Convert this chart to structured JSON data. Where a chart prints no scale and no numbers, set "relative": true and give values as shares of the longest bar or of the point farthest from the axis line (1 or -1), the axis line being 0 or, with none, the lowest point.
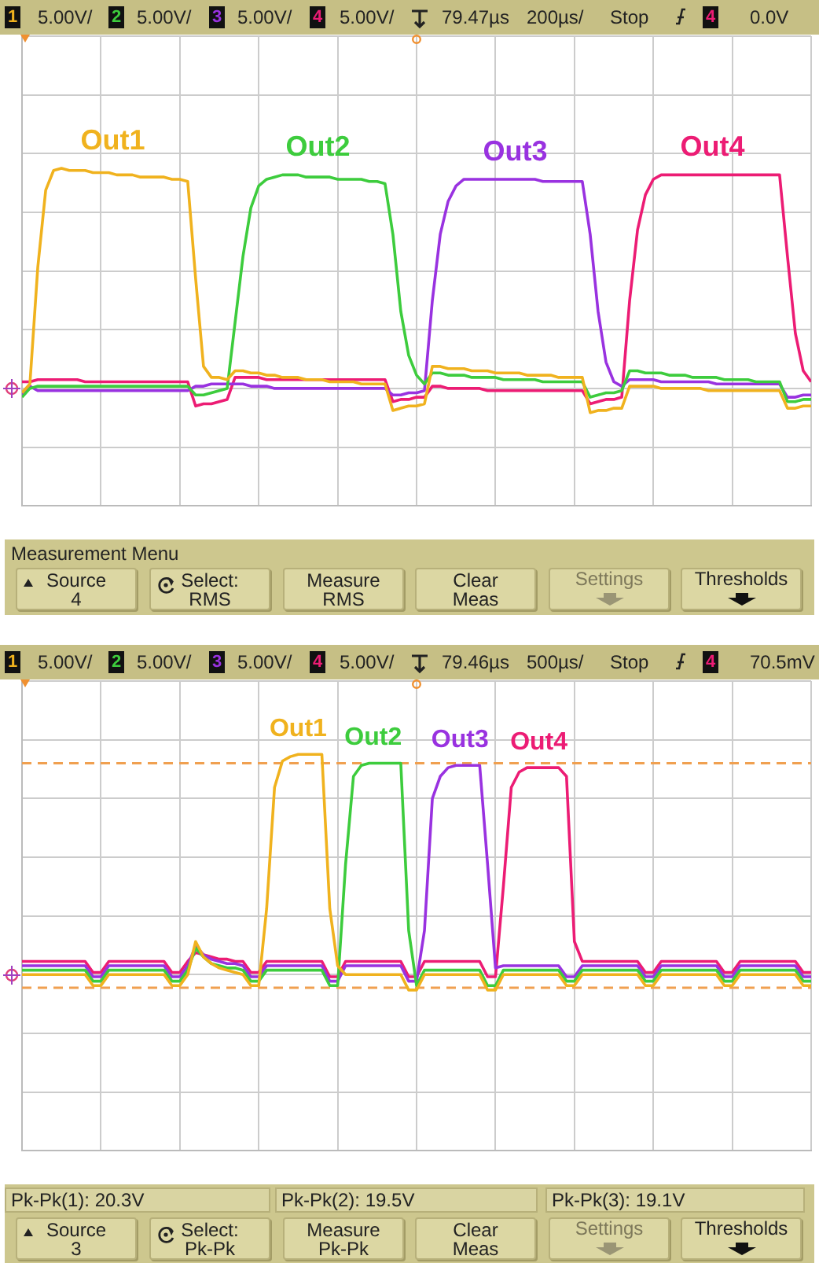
{
  "chart_data": [
    {
      "type": "line",
      "relative": true,
      "grid": true,
      "categories": [
        null,
        null,
        null,
        null,
        null,
        null,
        null,
        null,
        null,
        null,
        null,
        null,
        null,
        null,
        null,
        null,
        null,
        null,
        null,
        null,
        null,
        null,
        null,
        null,
        null,
        null,
        null,
        null,
        null,
        null,
        null,
        null,
        null,
        null,
        null,
        null,
        null,
        null,
        null,
        null,
        null,
        null,
        null,
        null,
        null,
        null,
        null,
        null,
        null,
        null,
        null,
        null,
        null,
        null,
        null,
        null,
        null,
        null,
        null,
        null,
        null,
        null,
        null,
        null,
        null,
        null,
        null,
        null,
        null,
        null,
        null,
        null,
        null,
        null,
        null,
        null,
        null,
        null,
        null,
        null,
        null,
        null,
        null,
        null,
        null,
        null,
        null,
        null,
        null,
        null,
        null,
        null,
        null,
        null,
        null,
        null,
        null,
        null,
        null,
        null,
        null
      ],
      "series": [
        {
          "name": "Out1",
          "color": "#f0b21e",
          "values": [
            -0.02,
            0.02,
            0.55,
            0.9,
            0.99,
            1.0,
            0.99,
            0.99,
            0.99,
            0.98,
            0.98,
            0.98,
            0.97,
            0.97,
            0.97,
            0.96,
            0.96,
            0.96,
            0.96,
            0.95,
            0.95,
            0.94,
            0.5,
            0.1,
            0.05,
            0.05,
            0.04,
            0.08,
            0.08,
            0.07,
            0.07,
            0.06,
            0.06,
            0.05,
            0.05,
            0.05,
            0.04,
            0.04,
            0.04,
            0.03,
            0.03,
            0.03,
            0.03,
            0.02,
            0.02,
            0.02,
            0.02,
            -0.1,
            -0.09,
            -0.08,
            -0.08,
            -0.07,
            0.1,
            0.1,
            0.09,
            0.09,
            0.09,
            0.08,
            0.08,
            0.08,
            0.07,
            0.07,
            0.07,
            0.07,
            0.06,
            0.06,
            0.06,
            0.06,
            0.05,
            0.05,
            0.05,
            0.05,
            -0.11,
            -0.1,
            -0.1,
            -0.09,
            -0.09,
            0.01,
            0.01,
            0.01,
            0.01,
            0.0,
            0.0,
            0.0,
            0.0,
            0.0,
            0.0,
            -0.01,
            -0.01,
            -0.01,
            -0.01,
            -0.01,
            -0.01,
            -0.01,
            -0.01,
            -0.01,
            -0.01,
            -0.09,
            -0.09,
            -0.08,
            -0.08
          ]
        },
        {
          "name": "Out2",
          "color": "#3dcc3d",
          "values": [
            -0.04,
            0.0,
            0.01,
            0.01,
            0.01,
            0.01,
            0.01,
            0.01,
            0.01,
            0.01,
            0.01,
            0.01,
            0.01,
            0.01,
            0.01,
            0.01,
            0.01,
            0.01,
            0.01,
            0.01,
            0.01,
            0.01,
            -0.03,
            -0.03,
            -0.02,
            -0.01,
            0.0,
            0.3,
            0.6,
            0.82,
            0.92,
            0.95,
            0.96,
            0.97,
            0.97,
            0.97,
            0.96,
            0.96,
            0.96,
            0.96,
            0.95,
            0.95,
            0.95,
            0.95,
            0.94,
            0.94,
            0.93,
            0.7,
            0.35,
            0.15,
            0.06,
            0.02,
            0.07,
            0.07,
            0.06,
            0.06,
            0.06,
            0.05,
            0.05,
            0.05,
            0.05,
            0.04,
            0.04,
            0.04,
            0.04,
            0.04,
            0.03,
            0.03,
            0.03,
            0.03,
            0.03,
            0.03,
            -0.04,
            -0.03,
            -0.02,
            -0.02,
            -0.01,
            0.08,
            0.08,
            0.07,
            0.07,
            0.07,
            0.06,
            0.06,
            0.06,
            0.05,
            0.05,
            0.05,
            0.05,
            0.04,
            0.04,
            0.04,
            0.04,
            0.03,
            0.03,
            0.03,
            0.03,
            -0.06,
            -0.06,
            -0.05,
            -0.05
          ]
        },
        {
          "name": "Out3",
          "color": "#9932e0",
          "values": [
            -0.03,
            0.01,
            -0.01,
            -0.01,
            -0.01,
            -0.01,
            -0.01,
            -0.01,
            -0.01,
            -0.01,
            -0.01,
            -0.01,
            -0.01,
            -0.01,
            -0.01,
            -0.01,
            -0.01,
            -0.01,
            -0.01,
            -0.01,
            -0.01,
            -0.01,
            0.01,
            0.01,
            0.02,
            0.02,
            0.02,
            0.02,
            0.02,
            0.01,
            0.01,
            0.01,
            0.0,
            0.0,
            0.0,
            0.0,
            0.0,
            0.0,
            0.0,
            0.0,
            0.0,
            0.0,
            0.0,
            0.0,
            0.0,
            0.0,
            0.0,
            -0.03,
            -0.03,
            -0.02,
            -0.02,
            -0.01,
            0.4,
            0.7,
            0.85,
            0.92,
            0.95,
            0.95,
            0.95,
            0.95,
            0.95,
            0.95,
            0.95,
            0.95,
            0.95,
            0.95,
            0.94,
            0.94,
            0.94,
            0.94,
            0.94,
            0.94,
            0.7,
            0.35,
            0.12,
            0.03,
            0.01,
            0.04,
            0.04,
            0.04,
            0.04,
            0.03,
            0.03,
            0.03,
            0.03,
            0.03,
            0.03,
            0.03,
            0.02,
            0.02,
            0.02,
            0.02,
            0.02,
            0.02,
            0.02,
            0.02,
            0.02,
            -0.04,
            -0.04,
            -0.03,
            -0.03
          ]
        },
        {
          "name": "Out4",
          "color": "#ec1c74",
          "values": [
            0.03,
            0.03,
            0.04,
            0.04,
            0.04,
            0.04,
            0.04,
            0.04,
            0.03,
            0.03,
            0.03,
            0.03,
            0.03,
            0.03,
            0.03,
            0.03,
            0.03,
            0.03,
            0.03,
            0.03,
            0.03,
            0.03,
            -0.08,
            -0.07,
            -0.07,
            -0.06,
            -0.05,
            0.05,
            0.05,
            0.05,
            0.05,
            0.04,
            0.04,
            0.04,
            0.04,
            0.04,
            0.04,
            0.04,
            0.04,
            0.04,
            0.04,
            0.04,
            0.04,
            0.04,
            0.04,
            0.04,
            0.04,
            -0.06,
            -0.05,
            -0.05,
            -0.04,
            -0.04,
            0.01,
            0.01,
            0.0,
            0.0,
            0.0,
            0.0,
            0.0,
            -0.01,
            -0.01,
            -0.01,
            -0.01,
            -0.01,
            -0.01,
            -0.01,
            -0.01,
            -0.01,
            -0.01,
            -0.01,
            -0.01,
            -0.01,
            -0.07,
            -0.06,
            -0.05,
            -0.05,
            -0.04,
            0.4,
            0.72,
            0.88,
            0.95,
            0.97,
            0.97,
            0.97,
            0.97,
            0.97,
            0.97,
            0.97,
            0.97,
            0.97,
            0.97,
            0.97,
            0.97,
            0.97,
            0.97,
            0.97,
            0.97,
            0.6,
            0.25,
            0.08,
            0.03
          ]
        }
      ],
      "annotations": [
        "1",
        "5.00V/",
        "2",
        "5.00V/",
        "3",
        "5.00V/",
        "4",
        "5.00V/",
        "79.47µs",
        "200µs/",
        "Stop",
        "4",
        "0.0V",
        "Measurement Menu",
        "Source\n4",
        "Select:\nRMS",
        "Measure\nRMS",
        "Clear\nMeas",
        "Settings",
        "Thresholds"
      ]
    },
    {
      "type": "line",
      "relative": true,
      "grid": true,
      "categories": [
        null,
        null,
        null,
        null,
        null,
        null,
        null,
        null,
        null,
        null,
        null,
        null,
        null,
        null,
        null,
        null,
        null,
        null,
        null,
        null,
        null,
        null,
        null,
        null,
        null,
        null,
        null,
        null,
        null,
        null,
        null,
        null,
        null,
        null,
        null,
        null,
        null,
        null,
        null,
        null,
        null,
        null,
        null,
        null,
        null,
        null,
        null,
        null,
        null,
        null,
        null,
        null,
        null,
        null,
        null,
        null,
        null,
        null,
        null,
        null,
        null,
        null,
        null,
        null,
        null,
        null,
        null,
        null,
        null,
        null,
        null,
        null,
        null,
        null,
        null,
        null,
        null,
        null,
        null,
        null,
        null,
        null,
        null,
        null,
        null,
        null,
        null,
        null,
        null,
        null,
        null,
        null,
        null,
        null,
        null,
        null,
        null,
        null,
        null,
        null,
        null
      ],
      "series": [
        {
          "name": "Out1",
          "color": "#f0b21e",
          "values": [
            0.0,
            0.0,
            0.0,
            0.0,
            0.0,
            0.0,
            0.0,
            0.0,
            0.0,
            -0.05,
            -0.05,
            0.0,
            0.0,
            0.0,
            0.0,
            0.0,
            0.0,
            0.0,
            0.0,
            -0.05,
            -0.05,
            0.0,
            0.15,
            0.08,
            0.05,
            0.03,
            0.02,
            0.01,
            0.0,
            -0.05,
            -0.05,
            0.3,
            0.85,
            0.97,
            0.99,
            1.0,
            1.0,
            1.0,
            1.0,
            0.3,
            0.04,
            0.0,
            0.0,
            0.0,
            0.0,
            0.0,
            0.0,
            0.0,
            0.0,
            -0.07,
            -0.07,
            0.0,
            0.0,
            0.0,
            0.0,
            0.0,
            0.0,
            0.0,
            0.0,
            -0.07,
            -0.07,
            0.0,
            0.0,
            0.0,
            0.0,
            0.0,
            0.0,
            0.0,
            0.0,
            -0.05,
            -0.05,
            0.0,
            0.0,
            0.0,
            0.0,
            0.0,
            0.0,
            0.0,
            0.0,
            -0.05,
            -0.05,
            0.0,
            0.0,
            0.0,
            0.0,
            0.0,
            0.0,
            0.0,
            0.0,
            -0.05,
            -0.05,
            0.0,
            0.0,
            0.0,
            0.0,
            0.0,
            0.0,
            0.0,
            0.0,
            -0.05,
            -0.05
          ]
        },
        {
          "name": "Out2",
          "color": "#3dcc3d",
          "values": [
            0.02,
            0.02,
            0.02,
            0.02,
            0.02,
            0.02,
            0.02,
            0.02,
            0.02,
            -0.03,
            -0.03,
            0.02,
            0.02,
            0.02,
            0.02,
            0.02,
            0.02,
            0.02,
            0.02,
            -0.03,
            -0.03,
            0.02,
            0.12,
            0.08,
            0.05,
            0.04,
            0.03,
            0.03,
            0.02,
            -0.03,
            -0.03,
            0.02,
            0.02,
            0.02,
            0.02,
            0.02,
            0.02,
            0.02,
            0.02,
            -0.05,
            -0.05,
            0.5,
            0.9,
            0.95,
            0.96,
            0.96,
            0.96,
            0.96,
            0.96,
            0.2,
            -0.05,
            0.02,
            0.02,
            0.02,
            0.02,
            0.02,
            0.02,
            0.02,
            0.02,
            -0.05,
            -0.05,
            0.02,
            0.02,
            0.02,
            0.02,
            0.02,
            0.02,
            0.02,
            0.02,
            -0.03,
            -0.03,
            0.02,
            0.02,
            0.02,
            0.02,
            0.02,
            0.02,
            0.02,
            0.02,
            -0.03,
            -0.03,
            0.02,
            0.02,
            0.02,
            0.02,
            0.02,
            0.02,
            0.02,
            0.02,
            -0.03,
            -0.03,
            0.02,
            0.02,
            0.02,
            0.02,
            0.02,
            0.02,
            0.02,
            0.02,
            -0.03,
            -0.03
          ]
        },
        {
          "name": "Out3",
          "color": "#9932e0",
          "values": [
            0.04,
            0.04,
            0.04,
            0.04,
            0.04,
            0.04,
            0.04,
            0.04,
            0.04,
            -0.01,
            -0.01,
            0.04,
            0.04,
            0.04,
            0.04,
            0.04,
            0.04,
            0.04,
            0.04,
            -0.01,
            -0.01,
            0.04,
            0.13,
            0.09,
            0.07,
            0.06,
            0.05,
            0.05,
            0.04,
            -0.01,
            -0.01,
            0.04,
            0.04,
            0.04,
            0.04,
            0.04,
            0.04,
            0.04,
            0.04,
            -0.03,
            -0.03,
            0.04,
            0.04,
            0.04,
            0.04,
            0.04,
            0.04,
            0.04,
            0.04,
            -0.03,
            -0.03,
            0.2,
            0.8,
            0.9,
            0.94,
            0.95,
            0.95,
            0.95,
            0.95,
            0.5,
            0.03,
            0.04,
            0.04,
            0.04,
            0.04,
            0.04,
            0.04,
            0.04,
            0.04,
            -0.01,
            -0.01,
            0.04,
            0.04,
            0.04,
            0.04,
            0.04,
            0.04,
            0.04,
            0.04,
            -0.01,
            -0.01,
            0.04,
            0.04,
            0.04,
            0.04,
            0.04,
            0.04,
            0.04,
            0.04,
            -0.01,
            -0.01,
            0.04,
            0.04,
            0.04,
            0.04,
            0.04,
            0.04,
            0.04,
            0.04,
            -0.01,
            -0.01
          ]
        },
        {
          "name": "Out4",
          "color": "#ec1c74",
          "values": [
            0.06,
            0.06,
            0.06,
            0.06,
            0.06,
            0.06,
            0.06,
            0.06,
            0.06,
            0.01,
            0.01,
            0.06,
            0.06,
            0.06,
            0.06,
            0.06,
            0.06,
            0.06,
            0.06,
            0.01,
            0.01,
            0.06,
            0.1,
            0.09,
            0.08,
            0.07,
            0.07,
            0.06,
            0.06,
            0.01,
            0.01,
            0.06,
            0.06,
            0.06,
            0.06,
            0.06,
            0.06,
            0.06,
            0.06,
            -0.01,
            -0.01,
            0.06,
            0.06,
            0.06,
            0.06,
            0.06,
            0.06,
            0.06,
            0.06,
            -0.01,
            -0.01,
            0.06,
            0.06,
            0.06,
            0.06,
            0.06,
            0.06,
            0.06,
            0.06,
            -0.01,
            -0.01,
            0.4,
            0.85,
            0.92,
            0.94,
            0.94,
            0.94,
            0.94,
            0.94,
            0.9,
            0.15,
            0.06,
            0.06,
            0.06,
            0.06,
            0.06,
            0.06,
            0.06,
            0.06,
            0.01,
            0.01,
            0.06,
            0.06,
            0.06,
            0.06,
            0.06,
            0.06,
            0.06,
            0.06,
            0.01,
            0.01,
            0.06,
            0.06,
            0.06,
            0.06,
            0.06,
            0.06,
            0.06,
            0.06,
            0.01,
            0.01
          ]
        }
      ],
      "ref_lines": [
        {
          "axis": "y",
          "value": 0.96,
          "color": "#f0a050",
          "line_style": "dashed"
        },
        {
          "axis": "y",
          "value": -0.06,
          "color": "#f0a050",
          "line_style": "dashed"
        }
      ],
      "annotations": [
        "1",
        "5.00V/",
        "2",
        "5.00V/",
        "3",
        "5.00V/",
        "4",
        "5.00V/",
        "79.46µs",
        "500µs/",
        "Stop",
        "4",
        "70.5mV",
        "Pk-Pk(1): 20.3V",
        "Pk-Pk(2): 19.5V",
        "Pk-Pk(3): 19.1V",
        "Source\n3",
        "Select:\nPk-Pk",
        "Measure\nPk-Pk",
        "Clear\nMeas",
        "Settings",
        "Thresholds"
      ]
    }
  ]
}
